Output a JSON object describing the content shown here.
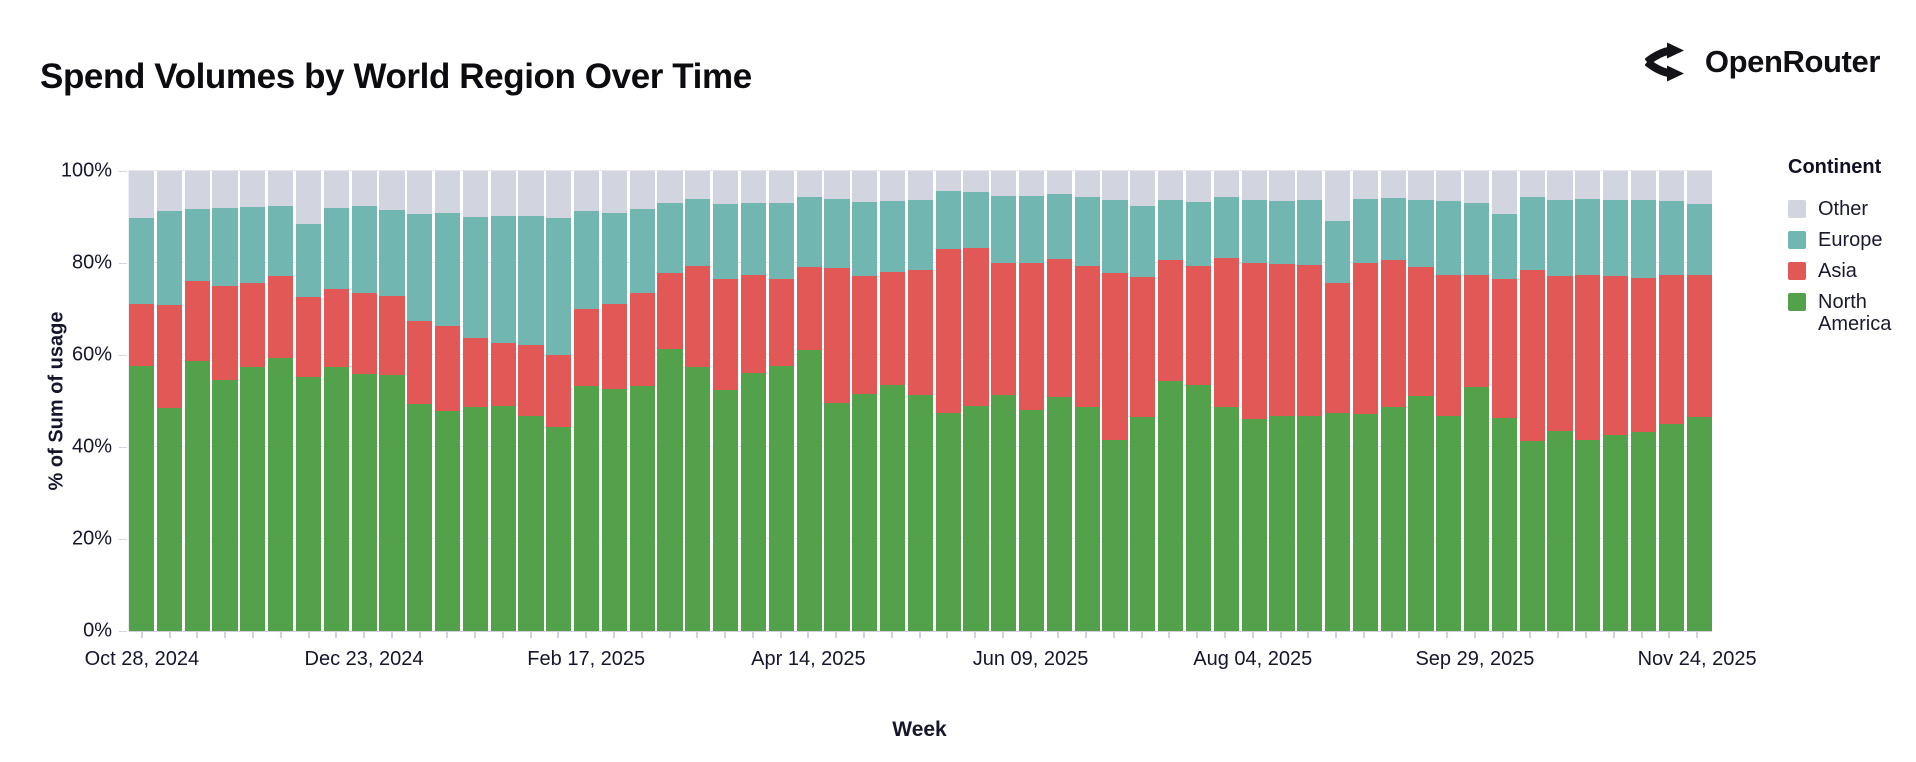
{
  "header": {
    "title": "Spend Volumes by World Region Over Time",
    "brand": "OpenRouter"
  },
  "legend": {
    "title": "Continent",
    "items": [
      {
        "label": "Other",
        "color": "#d2d4e0"
      },
      {
        "label": "Europe",
        "color": "#72b6b1"
      },
      {
        "label": "Asia",
        "color": "#e25857"
      },
      {
        "label": "North America",
        "color": "#53a14b"
      }
    ]
  },
  "chart_data": {
    "type": "bar",
    "variant": "stacked-100-percent",
    "title": "Spend Volumes by World Region Over Time",
    "xlabel": "Week",
    "ylabel": "% of Sum of usage",
    "ylim": [
      0,
      100
    ],
    "grid": "horizontal-faint",
    "legend_position": "right",
    "weeks_count": 57,
    "y_ticks": [
      "0%",
      "20%",
      "40%",
      "60%",
      "80%",
      "100%"
    ],
    "x_ticks": [
      {
        "label": "Oct 28, 2024",
        "bar_index": 0
      },
      {
        "label": "Dec 23, 2024",
        "bar_index": 8
      },
      {
        "label": "Feb 17, 2025",
        "bar_index": 16
      },
      {
        "label": "Apr 14, 2025",
        "bar_index": 24
      },
      {
        "label": "Jun 09, 2025",
        "bar_index": 32
      },
      {
        "label": "Aug 04, 2025",
        "bar_index": 40
      },
      {
        "label": "Sep 29, 2025",
        "bar_index": 48
      },
      {
        "label": "Nov 24, 2025",
        "bar_index": 56
      }
    ],
    "stack_order_bottom_to_top": [
      "North America",
      "Asia",
      "Europe",
      "Other"
    ],
    "series": [
      {
        "name": "North America",
        "color": "#53a14b",
        "values": [
          57.7,
          48.4,
          58.6,
          54.6,
          57.4,
          59.4,
          55.2,
          57.4,
          55.9,
          55.7,
          49.3,
          47.9,
          48.7,
          48.9,
          46.8,
          44.4,
          53.2,
          52.7,
          53.2,
          61.4,
          57.5,
          52.3,
          56.1,
          57.7,
          61.1,
          49.6,
          51.6,
          53.4,
          51.4,
          47.5,
          48.9,
          51.4,
          48.0,
          50.9,
          48.6,
          41.6,
          46.6,
          54.3,
          53.4,
          48.6,
          46.1,
          46.8,
          46.8,
          47.5,
          47.1,
          48.7,
          51.1,
          46.8,
          53.0,
          46.3,
          41.4,
          43.4,
          41.6,
          42.6,
          43.2,
          45.0,
          46.6
        ]
      },
      {
        "name": "Asia",
        "color": "#e25857",
        "values": [
          13.4,
          22.5,
          17.6,
          20.3,
          18.3,
          17.7,
          17.5,
          17.0,
          17.5,
          17.2,
          18.2,
          18.5,
          15.0,
          13.7,
          15.3,
          15.5,
          16.9,
          18.4,
          20.2,
          16.5,
          21.8,
          24.3,
          21.2,
          18.9,
          18.0,
          29.3,
          25.5,
          24.6,
          27.0,
          35.5,
          34.3,
          28.7,
          31.9,
          30.0,
          30.7,
          36.3,
          30.4,
          26.4,
          26.0,
          32.5,
          33.9,
          33.0,
          32.7,
          28.1,
          32.9,
          32.0,
          28.0,
          30.7,
          24.4,
          30.3,
          37.0,
          33.7,
          35.7,
          34.5,
          33.6,
          32.5,
          30.7
        ]
      },
      {
        "name": "Europe",
        "color": "#72b6b1",
        "values": [
          18.7,
          20.4,
          15.6,
          17.1,
          16.4,
          15.2,
          15.7,
          17.5,
          19.1,
          18.7,
          23.2,
          24.5,
          26.3,
          27.6,
          28.2,
          29.9,
          21.3,
          19.8,
          18.4,
          15.2,
          14.6,
          16.3,
          15.7,
          16.5,
          15.2,
          15.0,
          16.1,
          15.4,
          15.2,
          12.6,
          12.2,
          14.5,
          14.6,
          14.1,
          15.0,
          15.9,
          15.3,
          13.0,
          13.8,
          13.3,
          13.6,
          13.6,
          14.1,
          13.5,
          13.9,
          13.4,
          14.6,
          15.9,
          15.6,
          14.1,
          15.9,
          16.5,
          16.6,
          16.5,
          16.9,
          15.9,
          15.6
        ]
      },
      {
        "name": "Other",
        "color": "#d2d4e0",
        "values": [
          10.2,
          8.7,
          8.2,
          8.0,
          7.9,
          7.7,
          11.6,
          8.1,
          7.5,
          8.4,
          9.3,
          9.1,
          10.0,
          9.8,
          9.7,
          10.2,
          8.6,
          9.1,
          8.2,
          6.9,
          6.1,
          7.1,
          7.0,
          6.9,
          5.7,
          6.1,
          6.8,
          6.6,
          6.4,
          4.4,
          4.6,
          5.4,
          5.5,
          5.0,
          5.7,
          6.2,
          7.7,
          6.3,
          6.8,
          5.6,
          6.4,
          6.6,
          6.4,
          10.9,
          6.1,
          5.9,
          6.3,
          6.6,
          7.0,
          9.3,
          5.7,
          6.4,
          6.1,
          6.4,
          6.3,
          6.6,
          7.1
        ]
      }
    ]
  }
}
